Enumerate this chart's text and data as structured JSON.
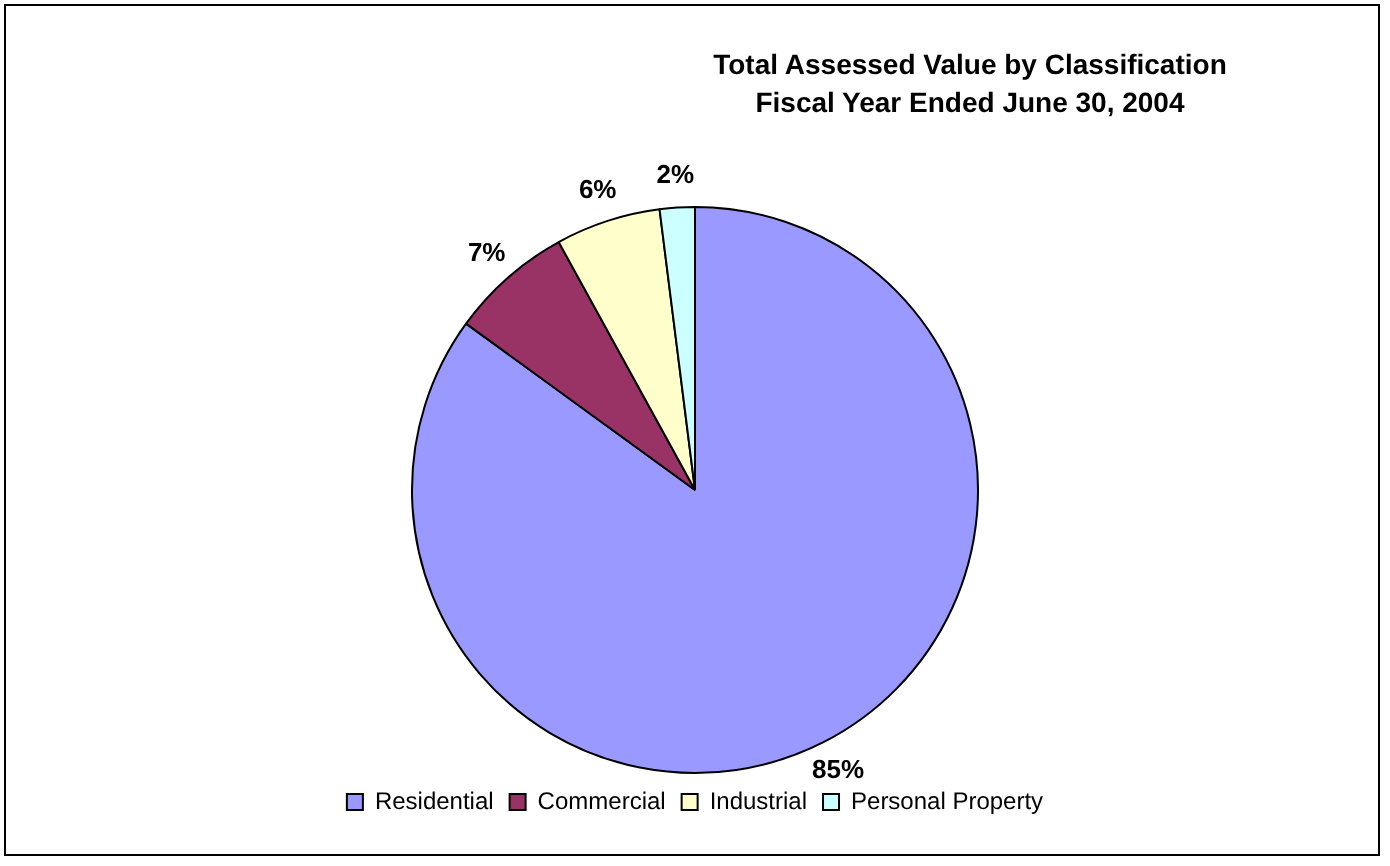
{
  "chart_data": {
    "type": "pie",
    "title": "Total Assessed Value by Classification",
    "subtitle": "Fiscal Year Ended June 30, 2004",
    "categories": [
      "Residential",
      "Commercial",
      "Industrial",
      "Personal Property"
    ],
    "values": [
      85,
      7,
      6,
      2
    ],
    "value_labels": [
      "85%",
      "7%",
      "6%",
      "2%"
    ],
    "colors": [
      "#9999ff",
      "#993366",
      "#ffffcc",
      "#ccffff"
    ],
    "legend": "bottom"
  }
}
